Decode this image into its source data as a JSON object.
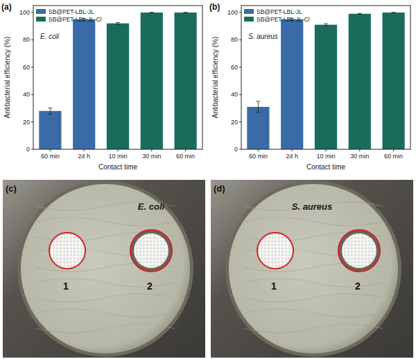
{
  "chart_data": [
    {
      "type": "bar",
      "annotations": [
        "(a)",
        "E. coli"
      ],
      "categories": [
        "60 min",
        "24 h",
        "10 min",
        "30 min",
        "60 min"
      ],
      "xlabel": "Contact time",
      "ylabel": "Antibacterial efficiency (%)",
      "ylim": [
        0,
        105
      ],
      "yticks": [
        0,
        20,
        40,
        60,
        80,
        100
      ],
      "grid": false,
      "legend": "upper left",
      "series": [
        {
          "name": "SB@PET-LBL-JL",
          "color": "#3a6ba6",
          "values": [
            28,
            95,
            null,
            null,
            null
          ],
          "errors": [
            2.2,
            0.6,
            null,
            null,
            null
          ]
        },
        {
          "name": "SB@PET-LBL-JL-Cl",
          "color": "#1b6b5d",
          "values": [
            null,
            null,
            92,
            99.9,
            99.9
          ],
          "errors": [
            null,
            null,
            0.6,
            0.2,
            0.1
          ]
        }
      ]
    },
    {
      "type": "bar",
      "annotations": [
        "(b)",
        "S. aureus"
      ],
      "categories": [
        "60 min",
        "24 h",
        "10 min",
        "30 min",
        "60 min"
      ],
      "xlabel": "Contact time",
      "ylabel": "Antibacterial efficiency (%)",
      "ylim": [
        0,
        105
      ],
      "yticks": [
        0,
        20,
        40,
        60,
        80,
        100
      ],
      "grid": false,
      "legend": "upper left",
      "series": [
        {
          "name": "SB@PET-LBL-JL",
          "color": "#3a6ba6",
          "values": [
            31,
            95,
            null,
            null,
            null
          ],
          "errors": [
            4,
            0.8,
            null,
            null,
            null
          ]
        },
        {
          "name": "SB@PET-LBL-JL-Cl",
          "color": "#1b6b5d",
          "values": [
            null,
            null,
            91,
            99,
            99.9
          ],
          "errors": [
            null,
            null,
            0.8,
            0.3,
            0.1
          ]
        }
      ]
    }
  ],
  "photos": [
    {
      "label": "(c)",
      "organism": "E. coli",
      "samples": [
        "1",
        "2"
      ]
    },
    {
      "label": "(d)",
      "organism": "S. aureus",
      "samples": [
        "1",
        "2"
      ]
    }
  ]
}
